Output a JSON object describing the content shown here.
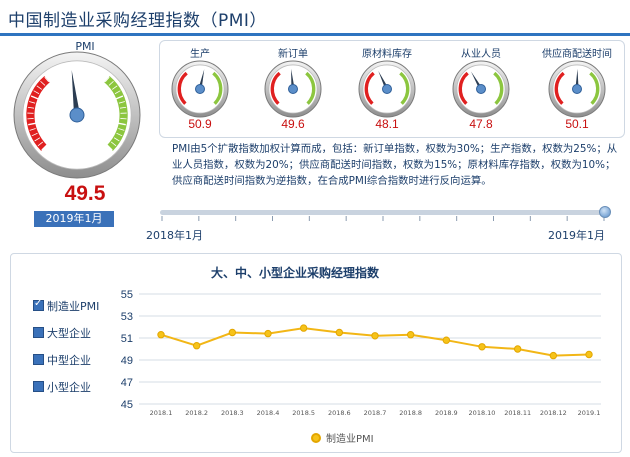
{
  "header": {
    "title": "中国制造业采购经理指数（PMI）"
  },
  "main_gauge": {
    "label": "PMI",
    "value": "49.5",
    "value_num": 49.5,
    "date": "2019年1月"
  },
  "sub_gauges": [
    {
      "label": "生产",
      "value": "50.9",
      "value_num": 50.9
    },
    {
      "label": "新订单",
      "value": "49.6",
      "value_num": 49.6
    },
    {
      "label": "原材料库存",
      "value": "48.1",
      "value_num": 48.1
    },
    {
      "label": "从业人员",
      "value": "47.8",
      "value_num": 47.8
    },
    {
      "label": "供应商配送时间",
      "value": "50.1",
      "value_num": 50.1
    }
  ],
  "description": "PMI由5个扩散指数加权计算而成，包括：新订单指数，权数为30%；生产指数，权数为25%；从业人员指数，权数为20%；供应商配送时间指数，权数为15%；原材料库存指数，权数为10%；供应商配送时间指数为逆指数，在合成PMI综合指数时进行反向运算。",
  "slider": {
    "start_label": "2018年1月",
    "end_label": "2019年1月"
  },
  "series_toggles": [
    {
      "label": "制造业PMI",
      "checked": true
    },
    {
      "label": "大型企业",
      "checked": false
    },
    {
      "label": "中型企业",
      "checked": false
    },
    {
      "label": "小型企业",
      "checked": false
    }
  ],
  "colors": {
    "accent": "#2f74c0",
    "line": "#f2b616",
    "value_red": "#c81010",
    "gauge_red": "#e02020",
    "gauge_green": "#8cc63f"
  },
  "chart_data": {
    "type": "line",
    "title": "大、中、小型企业采购经理指数",
    "categories": [
      "2018.1",
      "2018.2",
      "2018.3",
      "2018.4",
      "2018.5",
      "2018.6",
      "2018.7",
      "2018.8",
      "2018.9",
      "2018.10",
      "2018.11",
      "2018.12",
      "2019.1"
    ],
    "series": [
      {
        "name": "制造业PMI",
        "values": [
          51.3,
          50.3,
          51.5,
          51.4,
          51.9,
          51.5,
          51.2,
          51.3,
          50.8,
          50.2,
          50.0,
          49.4,
          49.5
        ]
      }
    ],
    "yticks": [
      45,
      47,
      49,
      51,
      53,
      55
    ],
    "ylim": [
      45,
      55
    ],
    "legend": "bottom",
    "grid": true
  }
}
